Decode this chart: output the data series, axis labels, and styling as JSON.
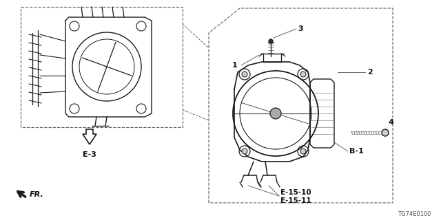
{
  "bg_color": "#ffffff",
  "line_color": "#1a1a1a",
  "dashed_color": "#666666",
  "label_color": "#111111",
  "title_code": "TG74E0100",
  "labels": {
    "e3": "E-3",
    "b1": "B-1",
    "e1510": "E-15-10",
    "e1511": "E-15-11",
    "fr": "FR.",
    "num1": "1",
    "num2": "2",
    "num3": "3",
    "num4": "4"
  },
  "fig_width": 6.4,
  "fig_height": 3.2,
  "dpi": 100
}
